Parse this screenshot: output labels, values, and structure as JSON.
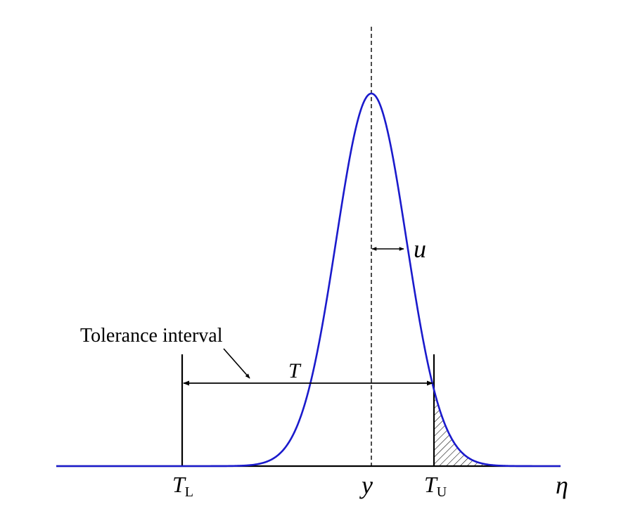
{
  "labels": {
    "tolerance_interval": "Tolerance interval",
    "T": "T",
    "u": "u",
    "T_L_base": "T",
    "T_L_sub": "L",
    "y": "y",
    "T_U_base": "T",
    "T_U_sub": "U",
    "eta": "η"
  },
  "colors": {
    "curve": "#1a1acc",
    "ink": "#000000"
  }
}
